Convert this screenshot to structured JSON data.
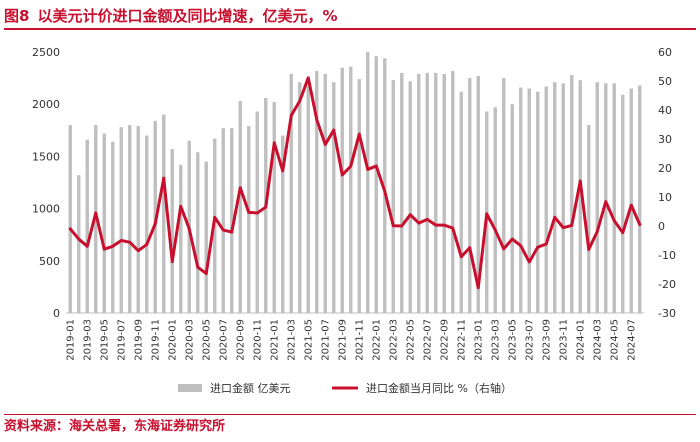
{
  "title": {
    "figure_label": "图8",
    "text": "以美元计价进口金额及同比增速，亿美元，%"
  },
  "source": "资料来源：海关总署，东海证券研究所",
  "colors": {
    "bar": "#bfbfbf",
    "line": "#c8102e",
    "title": "#c8102e"
  },
  "chart_data": {
    "type": "bar+line",
    "title": "以美元计价进口金额及同比增速，亿美元，%",
    "categories": [
      "2019-01",
      "2019-02",
      "2019-03",
      "2019-04",
      "2019-05",
      "2019-06",
      "2019-07",
      "2019-08",
      "2019-09",
      "2019-10",
      "2019-11",
      "2019-12",
      "2020-01",
      "2020-02",
      "2020-03",
      "2020-04",
      "2020-05",
      "2020-06",
      "2020-07",
      "2020-08",
      "2020-09",
      "2020-10",
      "2020-11",
      "2020-12",
      "2021-01",
      "2021-02",
      "2021-03",
      "2021-04",
      "2021-05",
      "2021-06",
      "2021-07",
      "2021-08",
      "2021-09",
      "2021-10",
      "2021-11",
      "2021-12",
      "2022-01",
      "2022-02",
      "2022-03",
      "2022-04",
      "2022-05",
      "2022-06",
      "2022-07",
      "2022-08",
      "2022-09",
      "2022-10",
      "2022-11",
      "2022-12",
      "2023-01",
      "2023-02",
      "2023-03",
      "2023-04",
      "2023-05",
      "2023-06",
      "2023-07",
      "2023-08",
      "2023-09",
      "2023-10",
      "2023-11",
      "2023-12",
      "2024-01",
      "2024-02",
      "2024-03",
      "2024-04",
      "2024-05",
      "2024-06",
      "2024-07",
      "2024-08"
    ],
    "xtick_labels": [
      "2019-01",
      "2019-03",
      "2019-05",
      "2019-07",
      "2019-09",
      "2019-11",
      "2020-01",
      "2020-03",
      "2020-05",
      "2020-07",
      "2020-09",
      "2020-11",
      "2021-01",
      "2021-03",
      "2021-05",
      "2021-07",
      "2021-09",
      "2021-11",
      "2022-01",
      "2022-03",
      "2022-05",
      "2022-07",
      "2022-09",
      "2022-11",
      "2023-01",
      "2023-03",
      "2023-05",
      "2023-07",
      "2023-09",
      "2023-11",
      "2024-01",
      "2024-03",
      "2024-05",
      "2024-07"
    ],
    "series": [
      {
        "name": "进口金额 亿美元",
        "type": "bar",
        "axis": "left",
        "values": [
          1800,
          1320,
          1660,
          1800,
          1720,
          1640,
          1780,
          1800,
          1790,
          1700,
          1840,
          1900,
          1570,
          1420,
          1650,
          1540,
          1450,
          1670,
          1770,
          1770,
          2030,
          1790,
          1930,
          2060,
          2020,
          1700,
          2290,
          2210,
          2180,
          2320,
          2290,
          2210,
          2350,
          2360,
          2240,
          2500,
          2460,
          2440,
          2230,
          2300,
          2220,
          2290,
          2300,
          2300,
          2290,
          2320,
          2120,
          2250,
          2270,
          1930,
          1970,
          2250,
          2000,
          2160,
          2150,
          2120,
          2170,
          2210,
          2200,
          2280,
          2230,
          1800,
          2210,
          2200,
          2200,
          2090,
          2150,
          2180
        ]
      },
      {
        "name": "进口金额当月同比 %（右轴）",
        "type": "line",
        "axis": "right",
        "values": [
          -1.0,
          -4.5,
          -7.0,
          4.5,
          -8.0,
          -7.0,
          -5.0,
          -5.6,
          -8.5,
          -6.4,
          0.8,
          16.5,
          -12.3,
          6.8,
          -1.0,
          -14.2,
          -16.4,
          3.0,
          -1.4,
          -2.1,
          13.2,
          4.7,
          4.5,
          6.5,
          28.7,
          19.0,
          38.1,
          43.1,
          51.1,
          36.7,
          28.1,
          33.1,
          17.6,
          20.6,
          31.7,
          19.5,
          20.7,
          12.0,
          0.1,
          0.0,
          3.9,
          1.0,
          2.3,
          0.3,
          0.3,
          -0.7,
          -10.6,
          -7.5,
          -21.3,
          4.2,
          -1.4,
          -7.9,
          -4.5,
          -6.8,
          -12.4,
          -7.3,
          -6.2,
          3.0,
          -0.6,
          0.2,
          15.5,
          -8.1,
          -1.9,
          8.4,
          1.8,
          -2.3,
          7.2,
          0.5
        ]
      }
    ],
    "y_left": {
      "min": 0,
      "max": 2500,
      "ticks": [
        0,
        500,
        1000,
        1500,
        2000,
        2500
      ]
    },
    "y_right": {
      "min": -30,
      "max": 60,
      "ticks": [
        -30,
        -20,
        -10,
        0,
        10,
        20,
        30,
        40,
        50,
        60
      ]
    },
    "legend": {
      "position": "bottom",
      "items": [
        "进口金额 亿美元",
        "进口金额当月同比 %（右轴）"
      ]
    }
  }
}
